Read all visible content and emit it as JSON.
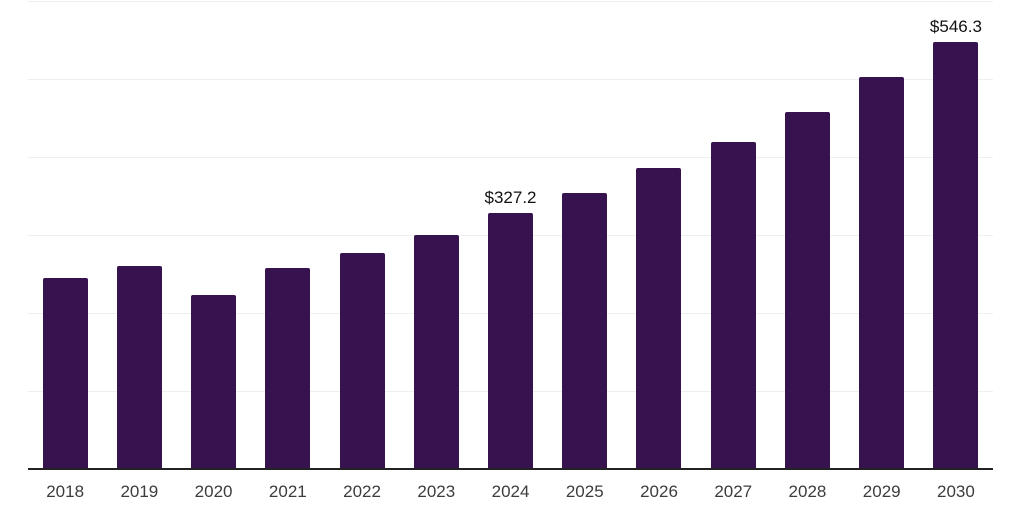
{
  "chart_data": {
    "type": "bar",
    "title": "",
    "xlabel": "",
    "ylabel": "",
    "categories": [
      "2018",
      "2019",
      "2020",
      "2021",
      "2022",
      "2023",
      "2024",
      "2025",
      "2026",
      "2027",
      "2028",
      "2029",
      "2030"
    ],
    "values": [
      243,
      259,
      222,
      256,
      276,
      299,
      327.2,
      353,
      385,
      418,
      457,
      501,
      546.3
    ],
    "value_labels": {
      "2024": "$327.2",
      "2030": "$546.3"
    },
    "value_prefix": "$",
    "ylim": [
      0,
      600
    ],
    "gridline_values": [
      100,
      200,
      300,
      400,
      500,
      600
    ],
    "grid": "horizontal-only",
    "legend": "none",
    "y_tick_labels": "none",
    "colors": {
      "bar": "#36124E",
      "gridline": "#efefef",
      "axis_line": "#222222",
      "year_label": "#3c3c3c",
      "value_label": "#111111",
      "background": "#ffffff"
    }
  }
}
